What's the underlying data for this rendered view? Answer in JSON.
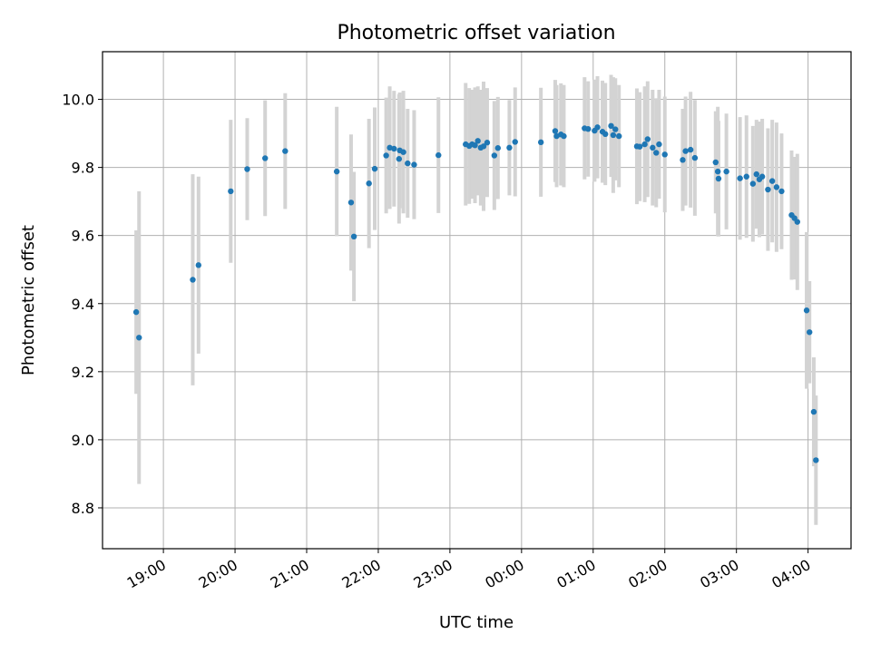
{
  "chart_data": {
    "type": "scatter",
    "title": "Photometric offset variation",
    "xlabel": "UTC time",
    "ylabel": "Photometric offset",
    "grid": true,
    "x_unit": "hours since 19:00 UTC",
    "xlim": [
      -0.85,
      9.6
    ],
    "ylim": [
      8.68,
      10.14
    ],
    "x_ticks": [
      {
        "value": 0,
        "label": "19:00"
      },
      {
        "value": 1,
        "label": "20:00"
      },
      {
        "value": 2,
        "label": "21:00"
      },
      {
        "value": 3,
        "label": "22:00"
      },
      {
        "value": 4,
        "label": "23:00"
      },
      {
        "value": 5,
        "label": "00:00"
      },
      {
        "value": 6,
        "label": "01:00"
      },
      {
        "value": 7,
        "label": "02:00"
      },
      {
        "value": 8,
        "label": "03:00"
      },
      {
        "value": 9,
        "label": "04:00"
      }
    ],
    "y_ticks": [
      {
        "value": 8.8,
        "label": "8.8"
      },
      {
        "value": 9.0,
        "label": "9.0"
      },
      {
        "value": 9.2,
        "label": "9.2"
      },
      {
        "value": 9.4,
        "label": "9.4"
      },
      {
        "value": 9.6,
        "label": "9.6"
      },
      {
        "value": 9.8,
        "label": "9.8"
      },
      {
        "value": 10.0,
        "label": "10.0"
      }
    ],
    "colors": {
      "point": "#1f77b4",
      "errorbar": "#d3d3d3"
    },
    "series": [
      {
        "name": "Photometric offset",
        "points": [
          [
            -0.38,
            9.375,
            0.24
          ],
          [
            -0.34,
            9.3,
            0.43
          ],
          [
            0.41,
            9.47,
            0.31
          ],
          [
            0.49,
            9.513,
            0.26
          ],
          [
            0.94,
            9.73,
            0.21
          ],
          [
            1.17,
            9.795,
            0.15
          ],
          [
            1.42,
            9.827,
            0.17
          ],
          [
            1.7,
            9.848,
            0.17
          ],
          [
            2.42,
            9.788,
            0.19
          ],
          [
            2.62,
            9.697,
            0.2
          ],
          [
            2.66,
            9.597,
            0.19
          ],
          [
            2.87,
            9.753,
            0.19
          ],
          [
            2.95,
            9.796,
            0.18
          ],
          [
            3.11,
            9.835,
            0.17
          ],
          [
            3.16,
            9.858,
            0.18
          ],
          [
            3.22,
            9.855,
            0.17
          ],
          [
            3.29,
            9.825,
            0.19
          ],
          [
            3.3,
            9.85,
            0.17
          ],
          [
            3.35,
            9.845,
            0.18
          ],
          [
            3.41,
            9.812,
            0.16
          ],
          [
            3.5,
            9.808,
            0.16
          ],
          [
            3.84,
            9.836,
            0.17
          ],
          [
            4.22,
            9.868,
            0.18
          ],
          [
            4.27,
            9.863,
            0.17
          ],
          [
            4.31,
            9.868,
            0.16
          ],
          [
            4.35,
            9.865,
            0.17
          ],
          [
            4.39,
            9.878,
            0.16
          ],
          [
            4.43,
            9.858,
            0.17
          ],
          [
            4.47,
            9.862,
            0.19
          ],
          [
            4.52,
            9.873,
            0.16
          ],
          [
            4.62,
            9.835,
            0.16
          ],
          [
            4.67,
            9.857,
            0.15
          ],
          [
            4.83,
            9.858,
            0.14
          ],
          [
            4.91,
            9.875,
            0.16
          ],
          [
            5.27,
            9.874,
            0.16
          ],
          [
            5.47,
            9.907,
            0.15
          ],
          [
            5.49,
            9.892,
            0.15
          ],
          [
            5.55,
            9.897,
            0.15
          ],
          [
            5.59,
            9.892,
            0.15
          ],
          [
            5.88,
            9.915,
            0.15
          ],
          [
            5.93,
            9.913,
            0.14
          ],
          [
            6.02,
            9.908,
            0.15
          ],
          [
            6.06,
            9.918,
            0.15
          ],
          [
            6.13,
            9.905,
            0.15
          ],
          [
            6.17,
            9.898,
            0.15
          ],
          [
            6.25,
            9.922,
            0.15
          ],
          [
            6.28,
            9.895,
            0.17
          ],
          [
            6.31,
            9.912,
            0.15
          ],
          [
            6.36,
            9.892,
            0.15
          ],
          [
            6.61,
            9.862,
            0.17
          ],
          [
            6.65,
            9.861,
            0.16
          ],
          [
            6.72,
            9.868,
            0.17
          ],
          [
            6.76,
            9.883,
            0.17
          ],
          [
            6.83,
            9.858,
            0.17
          ],
          [
            6.88,
            9.843,
            0.16
          ],
          [
            6.92,
            9.868,
            0.16
          ],
          [
            7.0,
            9.838,
            0.17
          ],
          [
            7.25,
            9.822,
            0.15
          ],
          [
            7.29,
            9.848,
            0.16
          ],
          [
            7.36,
            9.852,
            0.17
          ],
          [
            7.42,
            9.828,
            0.17
          ],
          [
            7.71,
            9.815,
            0.15
          ],
          [
            7.74,
            9.788,
            0.19
          ],
          [
            7.75,
            9.767,
            0.17
          ],
          [
            7.86,
            9.788,
            0.17
          ],
          [
            8.05,
            9.768,
            0.18
          ],
          [
            8.14,
            9.773,
            0.18
          ],
          [
            8.23,
            9.752,
            0.17
          ],
          [
            8.28,
            9.78,
            0.16
          ],
          [
            8.32,
            9.765,
            0.17
          ],
          [
            8.36,
            9.773,
            0.17
          ],
          [
            8.44,
            9.735,
            0.18
          ],
          [
            8.5,
            9.76,
            0.18
          ],
          [
            8.56,
            9.742,
            0.19
          ],
          [
            8.63,
            9.73,
            0.17
          ],
          [
            8.77,
            9.66,
            0.19
          ],
          [
            8.81,
            9.651,
            0.18
          ],
          [
            8.85,
            9.64,
            0.2
          ],
          [
            8.98,
            9.38,
            0.23
          ],
          [
            9.02,
            9.316,
            0.15
          ],
          [
            9.08,
            9.082,
            0.16
          ],
          [
            9.11,
            8.94,
            0.19
          ]
        ]
      }
    ]
  }
}
